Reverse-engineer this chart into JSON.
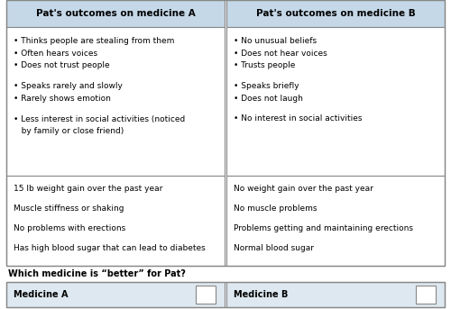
{
  "header_bg": "#c5d8e8",
  "choice_row_bg": "#dde8f0",
  "body_bg": "#ffffff",
  "border_color": "#888888",
  "header_A": "Pat's outcomes on medicine A",
  "header_B": "Pat's outcomes on medicine B",
  "col_A_bullet_lines": [
    [
      "• Thinks people are stealing from them",
      "• Often hears voices",
      "• Does not trust people"
    ],
    [
      "• Speaks rarely and slowly",
      "• Rarely shows emotion"
    ],
    [
      "• Less interest in social activities (noticed",
      "   by family or close friend)"
    ]
  ],
  "col_B_bullet_lines": [
    [
      "• No unusual beliefs",
      "• Does not hear voices",
      "• Trusts people"
    ],
    [
      "• Speaks briefly",
      "• Does not laugh"
    ],
    [
      "• No interest in social activities"
    ]
  ],
  "col_A_plain": [
    "15 lb weight gain over the past year",
    "Muscle stiffness or shaking",
    "No problems with erections",
    "Has high blood sugar that can lead to diabetes"
  ],
  "col_B_plain": [
    "No weight gain over the past year",
    "No muscle problems",
    "Problems getting and maintaining erections",
    "Normal blood sugar"
  ],
  "question": "Which medicine is “better” for Pat?",
  "choice_A": "Medicine A",
  "choice_B": "Medicine B",
  "figsize": [
    5.0,
    3.43
  ],
  "dpi": 100
}
